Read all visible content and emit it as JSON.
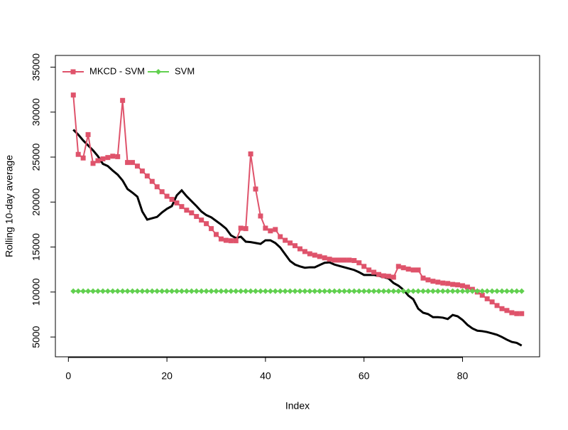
{
  "chart_data": {
    "type": "line",
    "xlabel": "Index",
    "ylabel": "Rolling 10-day average",
    "x": [
      1,
      2,
      3,
      4,
      5,
      6,
      7,
      8,
      9,
      10,
      11,
      12,
      13,
      14,
      15,
      16,
      17,
      18,
      19,
      20,
      21,
      22,
      23,
      24,
      25,
      26,
      27,
      28,
      29,
      30,
      31,
      32,
      33,
      34,
      35,
      36,
      37,
      38,
      39,
      40,
      41,
      42,
      43,
      44,
      45,
      46,
      47,
      48,
      49,
      50,
      51,
      52,
      53,
      54,
      55,
      56,
      57,
      58,
      59,
      60,
      61,
      62,
      63,
      64,
      65,
      66,
      67,
      68,
      69,
      70,
      71,
      72,
      73,
      74,
      75,
      76,
      77,
      78,
      79,
      80,
      81,
      82,
      83,
      84,
      85,
      86,
      87,
      88,
      89,
      90,
      91,
      92
    ],
    "series": [
      {
        "color": "#000000",
        "marker": "none",
        "values": [
          28050,
          27500,
          26850,
          26300,
          25750,
          25100,
          24250,
          24000,
          23500,
          23050,
          22400,
          21450,
          21050,
          20600,
          18950,
          18050,
          18200,
          18350,
          18850,
          19250,
          19550,
          20750,
          21300,
          20650,
          20100,
          19550,
          18950,
          18550,
          18300,
          17900,
          17500,
          17050,
          16300,
          16000,
          16150,
          15600,
          15550,
          15450,
          15350,
          15750,
          15750,
          15450,
          14950,
          14200,
          13450,
          13050,
          12850,
          12700,
          12750,
          12750,
          13000,
          13250,
          13300,
          13050,
          12900,
          12750,
          12600,
          12450,
          12200,
          11900,
          11900,
          11900,
          11800,
          11650,
          11500,
          11000,
          10700,
          10250,
          9600,
          9200,
          8150,
          7700,
          7550,
          7200,
          7200,
          7150,
          7000,
          7450,
          7300,
          6900,
          6350,
          5950,
          5700,
          5650,
          5550,
          5400,
          5250,
          5000,
          4700,
          4450,
          4350,
          4050
        ]
      },
      {
        "name": "MKCD - SVM",
        "color": "#df536b",
        "marker": "square",
        "values": [
          31900,
          25300,
          24900,
          27500,
          24300,
          24600,
          24800,
          24950,
          25100,
          25050,
          31300,
          24400,
          24400,
          24000,
          23450,
          22900,
          22300,
          21700,
          21150,
          20650,
          20300,
          19900,
          19500,
          19100,
          18800,
          18400,
          18000,
          17600,
          17050,
          16400,
          15900,
          15750,
          15700,
          15700,
          17100,
          17050,
          25350,
          21450,
          18450,
          17100,
          16800,
          16950,
          16150,
          15750,
          15450,
          15150,
          14800,
          14500,
          14250,
          14100,
          13950,
          13800,
          13650,
          13550,
          13550,
          13550,
          13550,
          13500,
          13250,
          12850,
          12450,
          12200,
          11950,
          11800,
          11750,
          11650,
          12850,
          12700,
          12550,
          12450,
          12450,
          11550,
          11350,
          11200,
          11100,
          11000,
          10950,
          10850,
          10800,
          10700,
          10550,
          10300,
          10000,
          9650,
          9250,
          8900,
          8500,
          8150,
          7950,
          7700,
          7600,
          7600
        ]
      },
      {
        "name": "SVM",
        "color": "#61d04f",
        "marker": "diamond",
        "values": [
          10100,
          10100,
          10100,
          10100,
          10100,
          10100,
          10100,
          10100,
          10100,
          10100,
          10100,
          10100,
          10100,
          10100,
          10100,
          10100,
          10100,
          10100,
          10100,
          10100,
          10100,
          10100,
          10100,
          10100,
          10100,
          10100,
          10100,
          10100,
          10100,
          10100,
          10100,
          10100,
          10100,
          10100,
          10100,
          10100,
          10100,
          10100,
          10100,
          10100,
          10100,
          10100,
          10100,
          10100,
          10100,
          10100,
          10100,
          10100,
          10100,
          10100,
          10100,
          10100,
          10100,
          10100,
          10100,
          10100,
          10100,
          10100,
          10100,
          10100,
          10100,
          10100,
          10100,
          10100,
          10100,
          10100,
          10100,
          10100,
          10100,
          10100,
          10100,
          10100,
          10100,
          10100,
          10100,
          10100,
          10100,
          10100,
          10100,
          10100,
          10100,
          10100,
          10100,
          10100,
          10100,
          10100,
          10100,
          10100,
          10100,
          10100,
          10100,
          10100
        ]
      }
    ],
    "xlim": [
      -2.64,
      95.64
    ],
    "xticks": [
      0,
      20,
      40,
      60,
      80
    ],
    "ylim": [
      2800,
      36300
    ],
    "yticks": [
      5000,
      10000,
      15000,
      20000,
      25000,
      30000,
      35000
    ],
    "legend": "topleft"
  }
}
